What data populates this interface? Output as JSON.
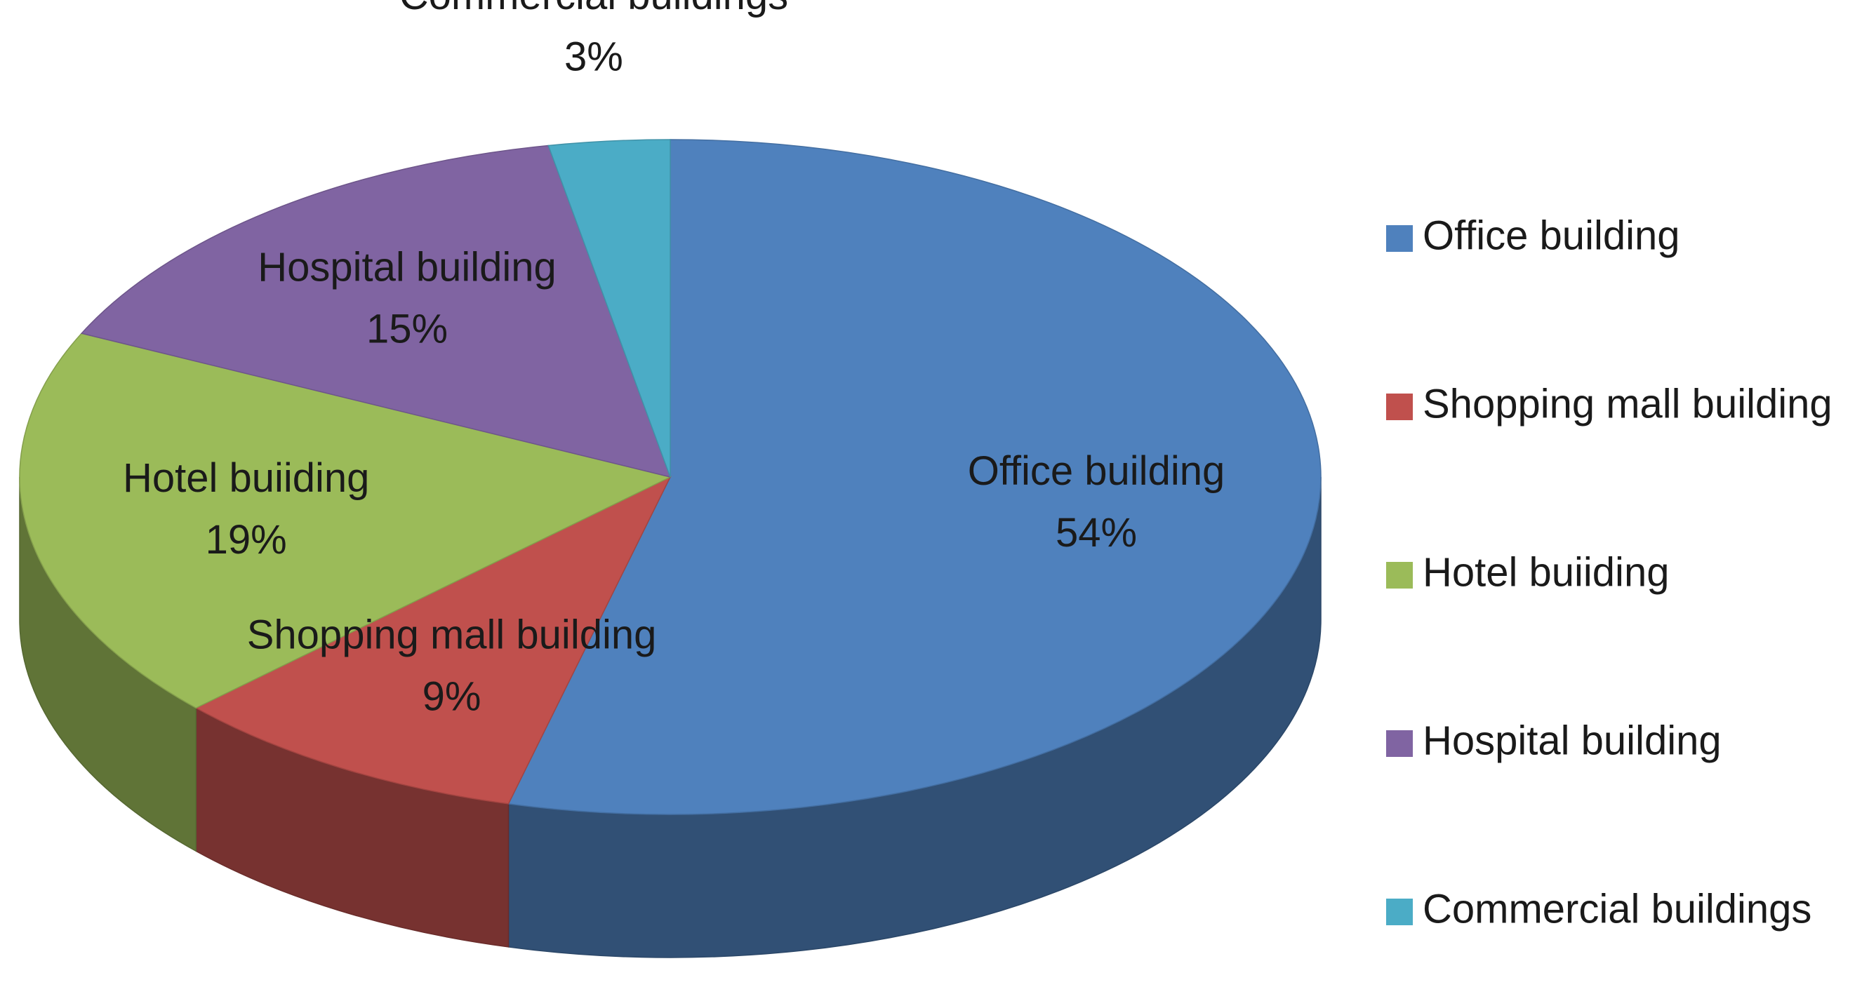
{
  "chart_data": {
    "type": "pie",
    "categories": [
      "Office building",
      "Shopping mall building",
      "Hotel buiiding",
      "Hospital building",
      "Commercial buildings"
    ],
    "values": [
      54,
      9,
      19,
      15,
      3
    ],
    "value_labels": [
      "54%",
      "9%",
      "19%",
      "15%",
      "3%"
    ],
    "colors": [
      "#4f81bd",
      "#c0504d",
      "#9bbb59",
      "#8064a2",
      "#4bacc6"
    ],
    "legend": "right"
  }
}
